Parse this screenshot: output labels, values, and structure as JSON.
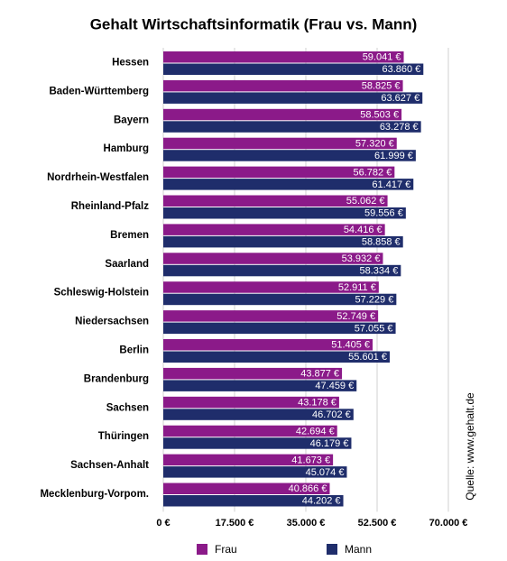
{
  "chart_data": {
    "type": "bar",
    "orientation": "horizontal",
    "title": "Gehalt Wirtschaftsinformatik (Frau vs. Mann)",
    "source": "Quelle: www.gehalt.de",
    "categories": [
      "Hessen",
      "Baden-Württemberg",
      "Bayern",
      "Hamburg",
      "Nordrhein-Westfalen",
      "Rheinland-Pfalz",
      "Bremen",
      "Saarland",
      "Schleswig-Holstein",
      "Niedersachsen",
      "Berlin",
      "Brandenburg",
      "Sachsen",
      "Thüringen",
      "Sachsen-Anhalt",
      "Mecklenburg-Vorpom."
    ],
    "series": [
      {
        "name": "Frau",
        "color": "#8b1a89",
        "values": [
          59041,
          58825,
          58503,
          57320,
          56782,
          55062,
          54416,
          53932,
          52911,
          52749,
          51405,
          43877,
          43178,
          42694,
          41673,
          40866
        ],
        "value_labels": [
          "59.041 €",
          "58.825 €",
          "58.503 €",
          "57.320 €",
          "56.782 €",
          "55.062 €",
          "54.416 €",
          "53.932 €",
          "52.911 €",
          "52.749 €",
          "51.405 €",
          "43.877 €",
          "43.178 €",
          "42.694 €",
          "41.673 €",
          "40.866 €"
        ]
      },
      {
        "name": "Mann",
        "color": "#1f2d6b",
        "values": [
          63860,
          63627,
          63278,
          61999,
          61417,
          59556,
          58858,
          58334,
          57229,
          57055,
          55601,
          47459,
          46702,
          46179,
          45074,
          44202
        ],
        "value_labels": [
          "63.860 €",
          "63.627 €",
          "63.278 €",
          "61.999 €",
          "61.417 €",
          "59.556 €",
          "58.858 €",
          "58.334 €",
          "57.229 €",
          "57.055 €",
          "55.601 €",
          "47.459 €",
          "46.702 €",
          "46.179 €",
          "45.074 €",
          "44.202 €"
        ]
      }
    ],
    "xlim": [
      0,
      70000
    ],
    "xticks": [
      {
        "value": 0,
        "label": "0 €"
      },
      {
        "value": 17500,
        "label": "17.500 €"
      },
      {
        "value": 35000,
        "label": "35.000 €"
      },
      {
        "value": 52500,
        "label": "52.500 €"
      },
      {
        "value": 70000,
        "label": "70.000 €"
      }
    ],
    "grid": true
  }
}
